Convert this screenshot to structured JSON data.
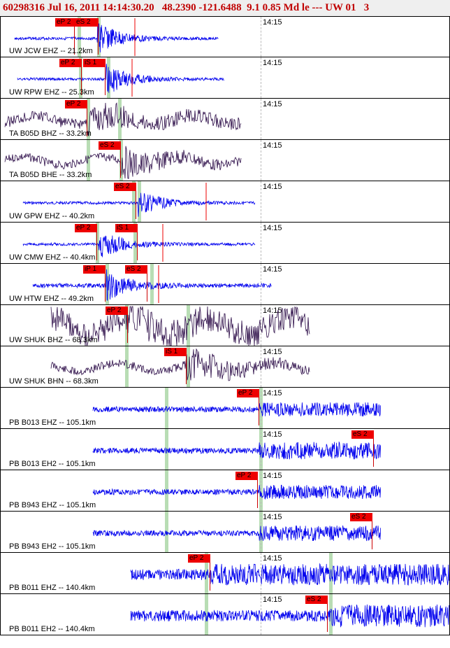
{
  "header": {
    "text": "60298316 Jul 16, 2011 14:14:30.20   48.2390 -121.6488  9.1 0.85 Md le --- UW 01   3"
  },
  "time_grid_label": "14:15",
  "colors": {
    "blue_trace": "#0000ee",
    "dark_trace": "#2a0a46",
    "pick": "#ee0000",
    "marker": "#b8ddb4"
  },
  "channels": [
    {
      "label": "UW JCW EHZ -- 21.2km",
      "picks": [
        "eP 2",
        "eS 2"
      ]
    },
    {
      "label": "UW RPW EHZ -- 25.3km",
      "picks": [
        "eP 2",
        "iS 1"
      ]
    },
    {
      "label": "TA B05D BHZ -- 33.2km",
      "picks": [
        "eP 2"
      ]
    },
    {
      "label": "TA B05D BHE -- 33.2km",
      "picks": [
        "eS 2"
      ]
    },
    {
      "label": "UW GPW EHZ -- 40.2km",
      "picks": [
        "eS 2"
      ]
    },
    {
      "label": "UW CMW EHZ -- 40.4km",
      "picks": [
        "eP 2",
        "iS 1"
      ]
    },
    {
      "label": "UW HTW EHZ -- 49.2km",
      "picks": [
        "iP 1",
        "eS 2"
      ]
    },
    {
      "label": "UW SHUK BHZ -- 68.3km",
      "picks": [
        "eP 2"
      ]
    },
    {
      "label": "UW SHUK BHN -- 68.3km",
      "picks": [
        "iS 1"
      ]
    },
    {
      "label": "PB B013 EHZ -- 105.1km",
      "picks": [
        "eP 2"
      ]
    },
    {
      "label": "PB B013 EH2 -- 105.1km",
      "picks": [
        "eS 2"
      ]
    },
    {
      "label": "PB B943 EHZ -- 105.1km",
      "picks": [
        "eP 2"
      ]
    },
    {
      "label": "PB B943 EH2 -- 105.1km",
      "picks": [
        "eS 2"
      ]
    },
    {
      "label": "PB B011 EHZ -- 140.4km",
      "picks": [
        "eP 2"
      ]
    },
    {
      "label": "PB B011 EH2 -- 140.4km",
      "picks": [
        "eS 2"
      ]
    }
  ]
}
